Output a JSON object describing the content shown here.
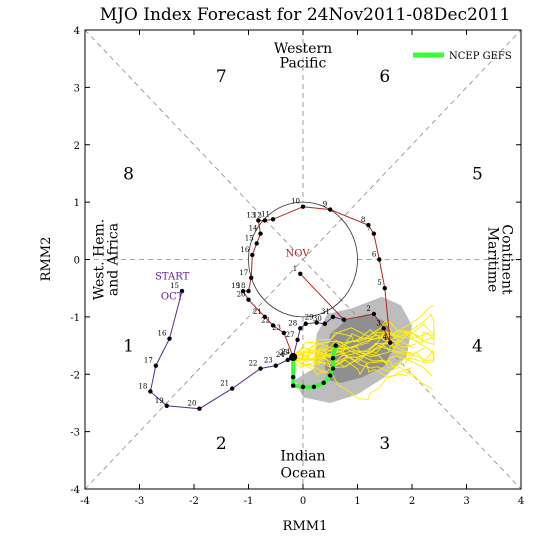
{
  "chart_data": {
    "type": "line",
    "title": "MJO Index Forecast for 24Nov2011-08Dec2011",
    "xlabel": "RMM1",
    "ylabel": "RMM2",
    "xlim": [
      -4,
      4
    ],
    "ylim": [
      -4,
      4
    ],
    "x_ticks": [
      "-4",
      "-3",
      "-2",
      "-1",
      "0",
      "1",
      "2",
      "3",
      "4"
    ],
    "y_ticks": [
      "-4",
      "-3",
      "-2",
      "-1",
      "0",
      "1",
      "2",
      "3",
      "4"
    ],
    "phase_numbers": [
      {
        "label": "1",
        "x": -3.2,
        "y": -1.5
      },
      {
        "label": "2",
        "x": -1.5,
        "y": -3.2
      },
      {
        "label": "3",
        "x": 1.5,
        "y": -3.2
      },
      {
        "label": "4",
        "x": 3.2,
        "y": -1.5
      },
      {
        "label": "5",
        "x": 3.2,
        "y": 1.5
      },
      {
        "label": "6",
        "x": 1.5,
        "y": 3.2
      },
      {
        "label": "7",
        "x": -1.5,
        "y": 3.2
      },
      {
        "label": "8",
        "x": -3.2,
        "y": 1.5
      }
    ],
    "region_labels": {
      "top": [
        "Western",
        "Pacific"
      ],
      "bottom": [
        "Indian",
        "Ocean"
      ],
      "left": [
        "West. Hem.",
        "and Africa"
      ],
      "right": [
        "Maritime",
        "Continent"
      ]
    },
    "month_labels": [
      {
        "text": "START",
        "x": -2.4,
        "y": -0.35,
        "color": "#6a1b9a"
      },
      {
        "text": "OCT",
        "x": -2.4,
        "y": -0.7,
        "color": "#6a1b9a"
      },
      {
        "text": "NOV",
        "x": -0.1,
        "y": 0.05,
        "color": "#b22222"
      }
    ],
    "legend": {
      "label": "NCEP GEFS",
      "color": "#33ff33",
      "position": "top-right"
    },
    "series": [
      {
        "name": "October",
        "color": "#5b2a86",
        "points": [
          {
            "x": -2.22,
            "y": -0.55,
            "label": "15"
          },
          {
            "x": -2.45,
            "y": -1.38,
            "label": "16"
          },
          {
            "x": -2.7,
            "y": -1.85,
            "label": "17"
          },
          {
            "x": -2.8,
            "y": -2.3,
            "label": "18"
          },
          {
            "x": -2.5,
            "y": -2.55,
            "label": "19"
          },
          {
            "x": -1.9,
            "y": -2.6,
            "label": "20"
          },
          {
            "x": -1.3,
            "y": -2.25,
            "label": "21"
          },
          {
            "x": -0.78,
            "y": -1.9,
            "label": "22"
          },
          {
            "x": -0.5,
            "y": -1.85,
            "label": "23"
          },
          {
            "x": -0.28,
            "y": -1.75,
            "label": "24"
          },
          {
            "x": -0.22,
            "y": -1.72,
            "label": "25"
          },
          {
            "x": -0.18,
            "y": -1.7,
            "label": ""
          },
          {
            "x": -0.1,
            "y": -1.4,
            "label": "27"
          },
          {
            "x": -0.05,
            "y": -1.2,
            "label": "28"
          },
          {
            "x": 0.05,
            "y": -1.12,
            "label": ""
          },
          {
            "x": 0.25,
            "y": -1.1,
            "label": "29"
          },
          {
            "x": 0.4,
            "y": -1.12,
            "label": "30"
          },
          {
            "x": 0.55,
            "y": -1.0,
            "label": "31"
          },
          {
            "x": 0.75,
            "y": -1.05,
            "label": ""
          }
        ]
      },
      {
        "name": "November",
        "color": "#b22222",
        "points": [
          {
            "x": -0.05,
            "y": -0.25,
            "label": "1"
          },
          {
            "x": 0.75,
            "y": -1.05,
            "label": ""
          },
          {
            "x": 1.3,
            "y": -0.95,
            "label": "2"
          },
          {
            "x": 1.48,
            "y": -1.2,
            "label": "3"
          },
          {
            "x": 1.6,
            "y": -1.45,
            "label": "4"
          },
          {
            "x": 1.5,
            "y": -0.5,
            "label": "5"
          },
          {
            "x": 1.4,
            "y": 0.0,
            "label": "6"
          },
          {
            "x": 1.3,
            "y": 0.45,
            "label": "7"
          },
          {
            "x": 1.2,
            "y": 0.6,
            "label": "8"
          },
          {
            "x": 0.5,
            "y": 0.87,
            "label": "9"
          },
          {
            "x": 0.0,
            "y": 0.92,
            "label": "10"
          },
          {
            "x": -0.55,
            "y": 0.7,
            "label": "11"
          },
          {
            "x": -0.7,
            "y": 0.68,
            "label": "12"
          },
          {
            "x": -0.82,
            "y": 0.68,
            "label": "13"
          },
          {
            "x": -0.78,
            "y": 0.45,
            "label": "14"
          },
          {
            "x": -0.85,
            "y": 0.28,
            "label": "15"
          },
          {
            "x": -0.93,
            "y": 0.08,
            "label": "16"
          },
          {
            "x": -0.95,
            "y": -0.32,
            "label": "17"
          },
          {
            "x": -1.0,
            "y": -0.55,
            "label": "18"
          },
          {
            "x": -1.1,
            "y": -0.55,
            "label": "19"
          },
          {
            "x": -1.0,
            "y": -0.7,
            "label": "20"
          },
          {
            "x": -0.7,
            "y": -1.0,
            "label": "21"
          },
          {
            "x": -0.55,
            "y": -1.15,
            "label": "22"
          },
          {
            "x": -0.35,
            "y": -1.28,
            "label": "23"
          },
          {
            "x": -0.18,
            "y": -1.7,
            "label": "24"
          }
        ]
      },
      {
        "name": "NCEP GEFS",
        "color": "#33ff33",
        "points": [
          {
            "x": -0.18,
            "y": -1.7
          },
          {
            "x": -0.18,
            "y": -2.05
          },
          {
            "x": -0.18,
            "y": -2.2
          },
          {
            "x": 0.0,
            "y": -2.22
          },
          {
            "x": 0.2,
            "y": -2.22
          },
          {
            "x": 0.38,
            "y": -2.15
          },
          {
            "x": 0.5,
            "y": -2.02
          },
          {
            "x": 0.55,
            "y": -1.9
          },
          {
            "x": 0.55,
            "y": -1.72
          },
          {
            "x": 0.6,
            "y": -1.5
          }
        ]
      }
    ],
    "ensemble_shading": {
      "outer_color": "#bdbdbd",
      "inner_color": "#8f8f8f",
      "outer": [
        [
          0.2,
          -1.9
        ],
        [
          0.25,
          -1.3
        ],
        [
          0.45,
          -0.95
        ],
        [
          0.9,
          -0.85
        ],
        [
          1.45,
          -0.65
        ],
        [
          1.8,
          -0.8
        ],
        [
          2.0,
          -1.15
        ],
        [
          1.9,
          -1.7
        ],
        [
          1.5,
          -2.05
        ],
        [
          1.0,
          -2.35
        ],
        [
          0.5,
          -2.5
        ],
        [
          0.0,
          -2.4
        ],
        [
          -0.15,
          -2.1
        ]
      ],
      "inner": [
        [
          0.4,
          -1.85
        ],
        [
          0.5,
          -1.3
        ],
        [
          0.8,
          -1.05
        ],
        [
          1.2,
          -0.95
        ],
        [
          1.55,
          -1.1
        ],
        [
          1.7,
          -1.45
        ],
        [
          1.5,
          -1.85
        ],
        [
          1.1,
          -2.05
        ],
        [
          0.7,
          -2.15
        ],
        [
          0.45,
          -2.1
        ]
      ]
    },
    "grid": false
  }
}
